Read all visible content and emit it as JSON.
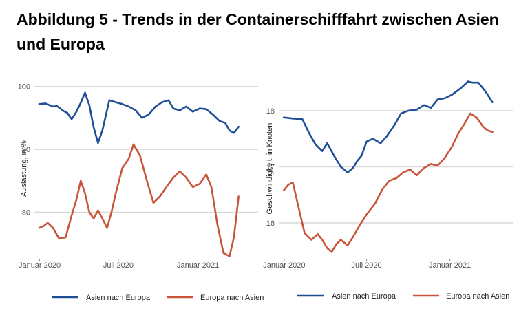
{
  "title": "Abbildung 5 - Trends in der Containerschifffahrt zwischen Asien und Europa",
  "colors": {
    "blue": "#1F4E96",
    "orange": "#C8553A",
    "grid": "#D9D9D9",
    "text": "#555555"
  },
  "chart_data": [
    {
      "type": "line",
      "ylabel": "Auslastung, in %",
      "xlabel": "",
      "ylim": [
        72.5,
        101.5
      ],
      "xlim": [
        "2019-12-20",
        "2021-05-20"
      ],
      "yticks": [
        80,
        90,
        100
      ],
      "xticks": [
        {
          "date": "2020-01-01",
          "label": "Januar 2020"
        },
        {
          "date": "2020-07-01",
          "label": "Juli 2020"
        },
        {
          "date": "2021-01-01",
          "label": "Januar 2021"
        }
      ],
      "grid": true,
      "legend_position": "bottom",
      "series": [
        {
          "name": "Asien nach Europa",
          "color": "#1F4E96",
          "x": [
            "2019-12-31",
            "2020-01-15",
            "2020-02-01",
            "2020-02-10",
            "2020-02-25",
            "2020-03-05",
            "2020-03-15",
            "2020-03-26",
            "2020-04-05",
            "2020-04-15",
            "2020-04-25",
            "2020-05-05",
            "2020-05-15",
            "2020-05-25",
            "2020-06-10",
            "2020-06-25",
            "2020-07-10",
            "2020-07-25",
            "2020-08-10",
            "2020-08-25",
            "2020-09-10",
            "2020-09-25",
            "2020-10-10",
            "2020-10-25",
            "2020-11-05",
            "2020-11-20",
            "2020-12-05",
            "2020-12-20",
            "2021-01-05",
            "2021-01-20",
            "2021-02-05",
            "2021-02-20",
            "2021-03-05",
            "2021-03-15",
            "2021-03-25",
            "2021-04-05"
          ],
          "y": [
            97.2,
            97.3,
            96.8,
            96.9,
            96.1,
            95.8,
            94.8,
            96.0,
            97.4,
            99.0,
            97.0,
            93.5,
            91.0,
            93.0,
            97.8,
            97.5,
            97.2,
            96.8,
            96.2,
            95.0,
            95.6,
            96.8,
            97.5,
            97.8,
            96.5,
            96.2,
            96.8,
            96.0,
            96.5,
            96.4,
            95.5,
            94.5,
            94.2,
            93.0,
            92.6,
            93.6
          ]
        },
        {
          "name": "Europa nach Asien",
          "color": "#C8553A",
          "x": [
            "2019-12-31",
            "2020-01-10",
            "2020-01-20",
            "2020-02-01",
            "2020-02-15",
            "2020-03-01",
            "2020-03-15",
            "2020-03-26",
            "2020-04-05",
            "2020-04-15",
            "2020-04-25",
            "2020-05-05",
            "2020-05-15",
            "2020-05-25",
            "2020-06-05",
            "2020-06-15",
            "2020-06-25",
            "2020-07-10",
            "2020-07-25",
            "2020-08-05",
            "2020-08-20",
            "2020-09-05",
            "2020-09-20",
            "2020-10-05",
            "2020-10-20",
            "2020-11-05",
            "2020-11-20",
            "2020-12-05",
            "2020-12-20",
            "2021-01-05",
            "2021-01-20",
            "2021-02-01",
            "2021-02-15",
            "2021-03-01",
            "2021-03-15",
            "2021-03-25",
            "2021-04-05"
          ],
          "y": [
            77.5,
            77.8,
            78.3,
            77.5,
            75.8,
            76.0,
            79.5,
            82.0,
            85.0,
            83.0,
            80.0,
            79.0,
            80.3,
            79.0,
            77.5,
            80.0,
            83.0,
            87.0,
            88.5,
            90.8,
            89.0,
            85.0,
            81.5,
            82.5,
            84.0,
            85.5,
            86.5,
            85.5,
            84.0,
            84.5,
            86.0,
            84.0,
            78.0,
            73.5,
            73.0,
            76.0,
            82.5
          ]
        }
      ]
    },
    {
      "type": "line",
      "ylabel": "Geschwindigkeit, in Knoten",
      "xlabel": "",
      "ylim": [
        15.35,
        18.6
      ],
      "xlim": [
        "2019-12-20",
        "2021-05-20"
      ],
      "yticks": [
        16,
        17,
        18
      ],
      "xticks": [
        {
          "date": "2020-01-01",
          "label": "Januar 2020"
        },
        {
          "date": "2020-07-01",
          "label": "Juli 2020"
        },
        {
          "date": "2021-01-01",
          "label": "Januar 2021"
        }
      ],
      "grid": true,
      "legend_position": "bottom",
      "series": [
        {
          "name": "Asien nach Europa",
          "color": "#1F4E96",
          "x": [
            "2019-12-31",
            "2020-01-20",
            "2020-02-10",
            "2020-02-25",
            "2020-03-10",
            "2020-03-25",
            "2020-04-05",
            "2020-04-20",
            "2020-05-05",
            "2020-05-20",
            "2020-06-01",
            "2020-06-10",
            "2020-06-20",
            "2020-07-01",
            "2020-07-15",
            "2020-08-01",
            "2020-08-15",
            "2020-09-01",
            "2020-09-15",
            "2020-10-01",
            "2020-10-20",
            "2020-11-05",
            "2020-11-20",
            "2020-12-05",
            "2020-12-20",
            "2021-01-05",
            "2021-01-25",
            "2021-02-10",
            "2021-02-20",
            "2021-03-05",
            "2021-03-20",
            "2021-04-05"
          ],
          "y": [
            17.88,
            17.86,
            17.85,
            17.6,
            17.4,
            17.28,
            17.42,
            17.2,
            17.0,
            16.9,
            16.98,
            17.1,
            17.2,
            17.45,
            17.5,
            17.42,
            17.55,
            17.75,
            17.95,
            18.0,
            18.02,
            18.1,
            18.05,
            18.2,
            18.22,
            18.28,
            18.4,
            18.52,
            18.5,
            18.5,
            18.35,
            18.15
          ]
        },
        {
          "name": "Europa nach Asien",
          "color": "#C8553A",
          "x": [
            "2019-12-31",
            "2020-01-10",
            "2020-01-20",
            "2020-02-01",
            "2020-02-15",
            "2020-03-01",
            "2020-03-15",
            "2020-03-25",
            "2020-04-05",
            "2020-04-15",
            "2020-04-25",
            "2020-05-05",
            "2020-05-20",
            "2020-06-01",
            "2020-06-15",
            "2020-07-01",
            "2020-07-20",
            "2020-08-05",
            "2020-08-20",
            "2020-09-05",
            "2020-09-20",
            "2020-10-05",
            "2020-10-20",
            "2020-11-05",
            "2020-11-20",
            "2020-12-05",
            "2020-12-20",
            "2021-01-05",
            "2021-01-20",
            "2021-02-01",
            "2021-02-15",
            "2021-03-01",
            "2021-03-15",
            "2021-03-25",
            "2021-04-05"
          ],
          "y": [
            16.58,
            16.68,
            16.72,
            16.3,
            15.82,
            15.7,
            15.8,
            15.7,
            15.55,
            15.48,
            15.62,
            15.7,
            15.6,
            15.75,
            15.95,
            16.15,
            16.35,
            16.6,
            16.75,
            16.8,
            16.9,
            16.95,
            16.85,
            16.98,
            17.05,
            17.02,
            17.15,
            17.35,
            17.6,
            17.75,
            17.95,
            17.88,
            17.72,
            17.65,
            17.62
          ]
        }
      ]
    }
  ]
}
